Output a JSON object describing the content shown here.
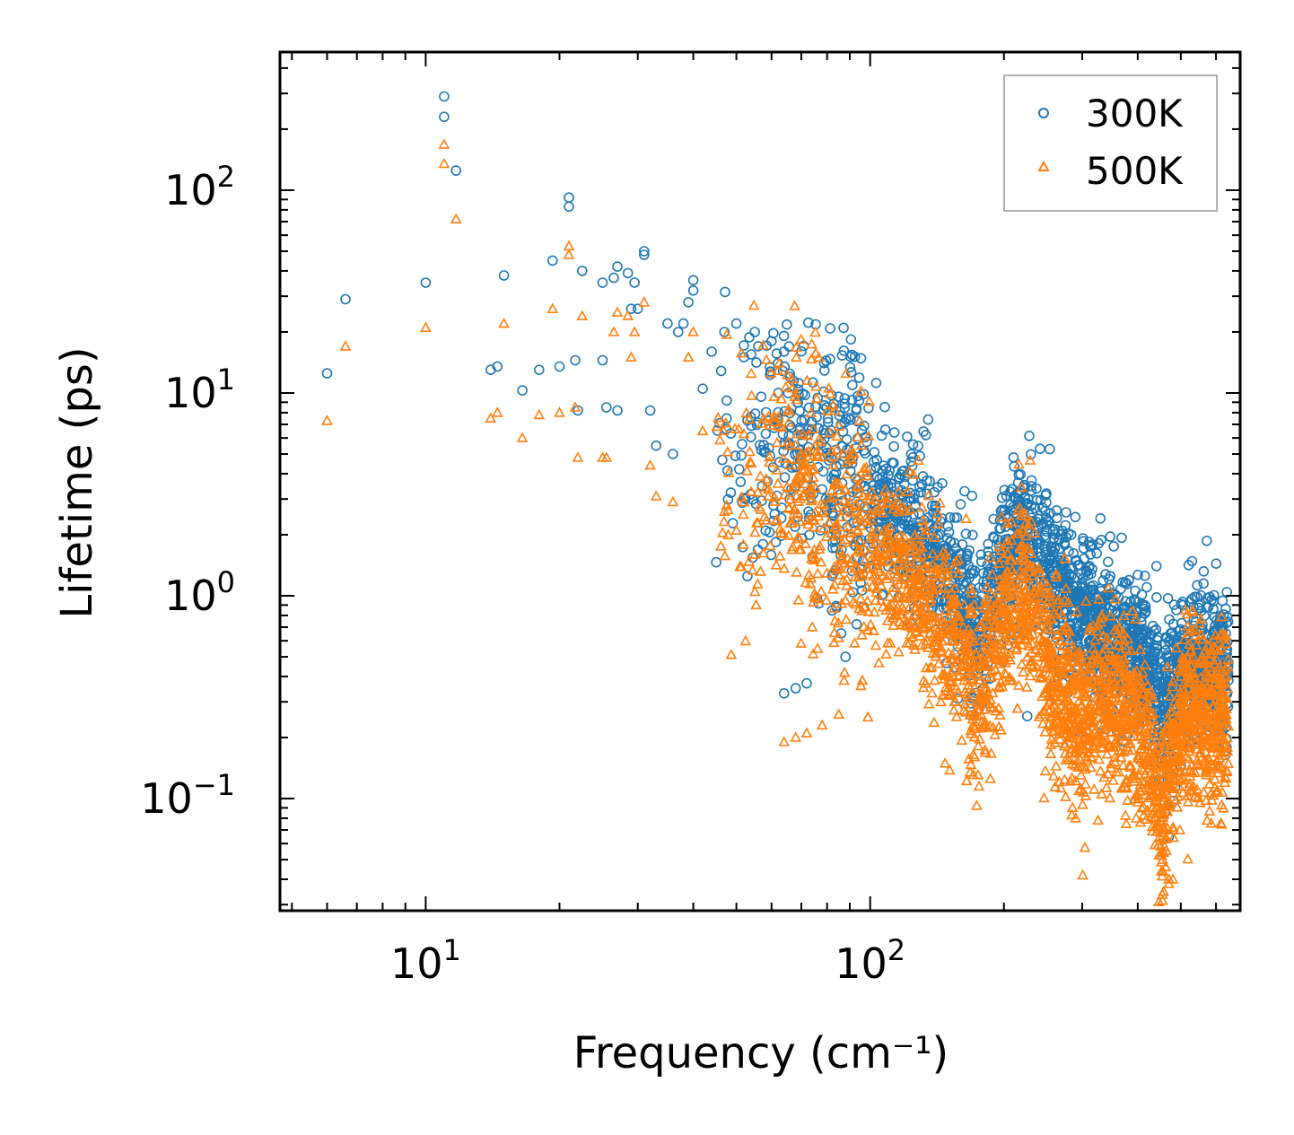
{
  "chart_data": {
    "type": "scatter",
    "xlabel": "Frequency (cm⁻¹)",
    "ylabel": "Lifetime (ps)",
    "xscale": "log",
    "yscale": "log",
    "xlim": [
      4.7,
      680
    ],
    "ylim": [
      0.028,
      480
    ],
    "xtick_labels": [
      {
        "base": "10",
        "exp": "1",
        "value": 10
      },
      {
        "base": "10",
        "exp": "2",
        "value": 100
      }
    ],
    "ytick_labels": [
      {
        "base": "10",
        "exp": "−1",
        "value": 0.1
      },
      {
        "base": "10",
        "exp": "0",
        "value": 1
      },
      {
        "base": "10",
        "exp": "1",
        "value": 10
      },
      {
        "base": "10",
        "exp": "2",
        "value": 100
      }
    ],
    "legend": {
      "position": "top-right",
      "entries": [
        "300K",
        "500K"
      ]
    },
    "series": [
      {
        "name": "300K",
        "marker": "circle",
        "color": "#1f77b4",
        "points": [
          [
            6.0,
            12.5
          ],
          [
            6.6,
            29
          ],
          [
            10.0,
            35
          ],
          [
            11.0,
            290
          ],
          [
            11.0,
            230
          ],
          [
            11.7,
            125
          ],
          [
            14.0,
            13
          ],
          [
            14.5,
            13.5
          ],
          [
            15.0,
            38
          ],
          [
            16.5,
            10.3
          ],
          [
            18.0,
            13
          ],
          [
            19.3,
            45
          ],
          [
            20.0,
            13.5
          ],
          [
            21.0,
            92
          ],
          [
            21.0,
            83
          ],
          [
            21.7,
            14.5
          ],
          [
            22.0,
            8.2
          ],
          [
            22.5,
            40
          ],
          [
            25.0,
            14.5
          ],
          [
            25.0,
            35
          ],
          [
            25.5,
            8.5
          ],
          [
            26.5,
            37
          ],
          [
            27.0,
            42
          ],
          [
            27.0,
            8.2
          ],
          [
            28.5,
            39
          ],
          [
            29.0,
            26
          ],
          [
            29.5,
            35
          ],
          [
            30.0,
            26
          ],
          [
            31.0,
            50
          ],
          [
            31.0,
            48
          ],
          [
            32.0,
            8.2
          ],
          [
            33.0,
            5.5
          ],
          [
            35.0,
            22
          ],
          [
            36.0,
            5.0
          ],
          [
            37.0,
            20
          ],
          [
            38.0,
            22
          ],
          [
            39.0,
            28
          ],
          [
            40.0,
            36
          ],
          [
            40.0,
            32
          ],
          [
            42.0,
            10.5
          ],
          [
            44.0,
            16
          ],
          [
            47.0,
            20
          ],
          [
            50.0,
            22
          ],
          [
            52.0,
            15
          ],
          [
            54.0,
            15.5
          ],
          [
            55.0,
            20
          ],
          [
            56.0,
            17
          ],
          [
            60.0,
            18
          ],
          [
            62.0,
            14
          ],
          [
            64.0,
            16
          ],
          [
            66.0,
            12
          ],
          [
            69.0,
            11.2
          ],
          [
            64.0,
            0.33
          ],
          [
            68.0,
            0.35
          ],
          [
            72.0,
            0.37
          ],
          [
            88.0,
            0.5
          ],
          [
            204.0,
            1.88
          ],
          [
            212.0,
            1.92
          ],
          [
            222.0,
            1.9
          ],
          [
            233.0,
            1.8
          ],
          [
            250.0,
            1.7
          ],
          [
            270.0,
            1.45
          ],
          [
            337.0,
            0.95
          ],
          [
            338.0,
            0.88
          ],
          [
            338.0,
            0.78
          ],
          [
            460.0,
            0.085
          ],
          [
            470.0,
            0.065
          ],
          [
            470.0,
            0.5
          ],
          [
            500.0,
            0.49
          ]
        ],
        "band": {
          "trend": [
            [
              45,
              7
            ],
            [
              65,
              6.5
            ],
            [
              80,
              5
            ],
            [
              100,
              3.3
            ],
            [
              130,
              2.1
            ],
            [
              160,
              1.0
            ],
            [
              175,
              0.6
            ],
            [
              195,
              1.25
            ],
            [
              215,
              1.95
            ],
            [
              250,
              1.55
            ],
            [
              280,
              0.95
            ],
            [
              320,
              0.7
            ],
            [
              345,
              0.62
            ],
            [
              380,
              0.52
            ],
            [
              420,
              0.42
            ],
            [
              455,
              0.25
            ],
            [
              470,
              0.3
            ],
            [
              520,
              0.45
            ],
            [
              600,
              0.44
            ],
            [
              640,
              0.42
            ]
          ],
          "spread": 0.24,
          "count": 2400
        }
      },
      {
        "name": "500K",
        "marker": "triangle",
        "color": "#ff7f0e",
        "points": [
          [
            6.0,
            7.3
          ],
          [
            6.6,
            17
          ],
          [
            10.0,
            21
          ],
          [
            11.0,
            168
          ],
          [
            11.0,
            135
          ],
          [
            11.7,
            72
          ],
          [
            14.0,
            7.5
          ],
          [
            14.5,
            8
          ],
          [
            15.0,
            22
          ],
          [
            16.5,
            6
          ],
          [
            18.0,
            7.8
          ],
          [
            19.3,
            26
          ],
          [
            20.0,
            8
          ],
          [
            21.0,
            53
          ],
          [
            21.0,
            48
          ],
          [
            21.7,
            8.5
          ],
          [
            22.0,
            4.8
          ],
          [
            22.5,
            24
          ],
          [
            25.0,
            4.8
          ],
          [
            25.5,
            4.8
          ],
          [
            26.5,
            20
          ],
          [
            27.0,
            25
          ],
          [
            28.5,
            24
          ],
          [
            29.0,
            15
          ],
          [
            29.5,
            20
          ],
          [
            31.0,
            28
          ],
          [
            32.0,
            4.4
          ],
          [
            33.0,
            3.1
          ],
          [
            36.0,
            2.9
          ],
          [
            39.0,
            15
          ],
          [
            40.0,
            20
          ],
          [
            42.0,
            6.5
          ],
          [
            47.0,
            2.6
          ],
          [
            50.0,
            2.1
          ],
          [
            55.0,
            1.6
          ],
          [
            64.0,
            0.19
          ],
          [
            68.0,
            0.2
          ],
          [
            72.0,
            0.21
          ],
          [
            78.0,
            0.23
          ],
          [
            85.0,
            0.26
          ],
          [
            233.0,
            1.05
          ],
          [
            337.0,
            0.55
          ],
          [
            338.0,
            0.48
          ],
          [
            338.0,
            0.43
          ],
          [
            455.0,
            0.05
          ],
          [
            470.0,
            0.04
          ],
          [
            470.0,
            0.038
          ],
          [
            480.0,
            0.04
          ]
        ],
        "band": {
          "trend": [
            [
              45,
              4.5
            ],
            [
              65,
              3.6
            ],
            [
              80,
              2.6
            ],
            [
              100,
              1.7
            ],
            [
              130,
              1.0
            ],
            [
              160,
              0.52
            ],
            [
              175,
              0.34
            ],
            [
              195,
              0.7
            ],
            [
              215,
              1.0
            ],
            [
              235,
              0.85
            ],
            [
              260,
              0.33
            ],
            [
              300,
              0.24
            ],
            [
              345,
              0.33
            ],
            [
              380,
              0.24
            ],
            [
              420,
              0.18
            ],
            [
              455,
              0.075
            ],
            [
              470,
              0.13
            ],
            [
              520,
              0.28
            ],
            [
              600,
              0.25
            ],
            [
              640,
              0.24
            ]
          ],
          "spread": 0.27,
          "count": 2600
        }
      }
    ]
  }
}
